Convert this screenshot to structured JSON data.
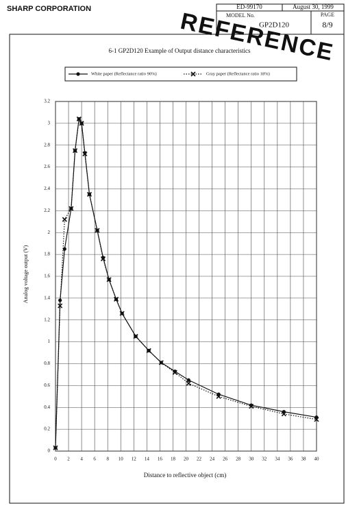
{
  "header": {
    "company": "SHARP CORPORATION",
    "doc_no": "ED-99170",
    "date": "August 30, 1999",
    "model_label": "MODEL No.",
    "model": "GP2D120",
    "page_label": "PAGE",
    "page": "8/9",
    "stamp": "REFERENCE"
  },
  "chart_data": {
    "type": "line",
    "title": "6-1  GP2D120 Example of Output distance characteristics",
    "x_label": "Distance to reflective object  (cm)",
    "y_label": "Analog voltage output (V)",
    "x": [
      0,
      0.7,
      1.4,
      2.4,
      3,
      3.6,
      4,
      4.5,
      5.2,
      6.4,
      7.3,
      8.2,
      9.3,
      10.2,
      12.3,
      14.3,
      16.2,
      18.3,
      20.4,
      25,
      30,
      35,
      40
    ],
    "series": [
      {
        "name": "White paper (Reflectance ratio 90%)",
        "color": "#111111",
        "style": "solid",
        "marker": "circle",
        "values": [
          0.03,
          1.38,
          1.85,
          2.22,
          2.75,
          3.04,
          3.0,
          2.73,
          2.35,
          2.02,
          1.77,
          1.57,
          1.39,
          1.26,
          1.05,
          0.92,
          0.81,
          0.73,
          0.65,
          0.52,
          0.42,
          0.36,
          0.31
        ]
      },
      {
        "name": "Gray paper (Reflectance ratio 18%)",
        "color": "#111111",
        "style": "dotted",
        "marker": "x",
        "values": [
          0.03,
          1.33,
          2.12,
          2.22,
          2.75,
          3.04,
          3.0,
          2.72,
          2.35,
          2.02,
          1.76,
          1.57,
          1.39,
          1.26,
          1.05,
          0.92,
          0.81,
          0.72,
          0.62,
          0.5,
          0.41,
          0.34,
          0.29
        ]
      }
    ],
    "xlim": [
      0,
      40
    ],
    "xticks": [
      0,
      2,
      4,
      6,
      8,
      10,
      12,
      14,
      16,
      18,
      20,
      22,
      24,
      26,
      28,
      30,
      32,
      34,
      36,
      38,
      40
    ],
    "ylim": [
      0,
      3.2
    ],
    "yticks": [
      0,
      0.2,
      0.4,
      0.6,
      0.8,
      1,
      1.2,
      1.4,
      1.6,
      1.8,
      2,
      2.2,
      2.4,
      2.6,
      2.8,
      3,
      3.2
    ],
    "grid": true
  }
}
